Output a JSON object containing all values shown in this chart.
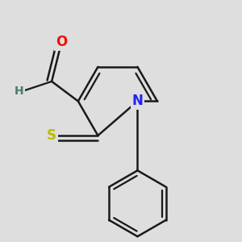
{
  "background_color": "#dedede",
  "bond_color": "#1a1a1a",
  "bond_width": 1.8,
  "atom_colors": {
    "O": "#ee1100",
    "N": "#2222ee",
    "S": "#bbbb00",
    "H": "#4a7a6a",
    "C": "#1a1a1a"
  },
  "font_size_atoms": 12,
  "font_size_H": 10,
  "xlim": [
    -1.5,
    1.6
  ],
  "ylim": [
    -2.1,
    1.5
  ]
}
